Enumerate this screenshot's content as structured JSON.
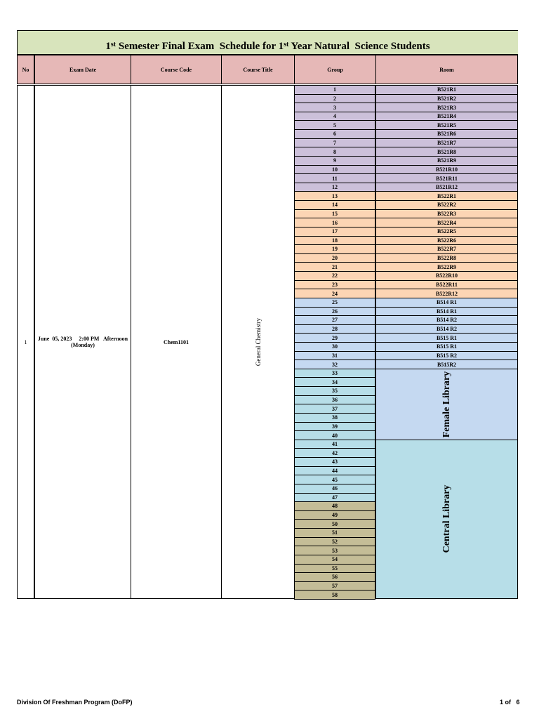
{
  "title": {
    "pre": "1",
    "sup1": "st",
    "mid": " Semester Final Exam  Schedule for 1",
    "sup2": "st",
    "post": " Year Natural  Science Students"
  },
  "headers": {
    "no": "No",
    "exam_date": "Exam Date",
    "course_code": "Course Code",
    "course_title": "Course Title",
    "group": "Group",
    "room": "Room"
  },
  "entry": {
    "no": "1",
    "date_line1": "June  05, 2023     2:00 PM   Afternoon",
    "date_line2": "(Monday)",
    "course_code": "Chem1101",
    "course_title": "General Chemistry"
  },
  "colors": {
    "purple": "#ccc0da",
    "orange": "#fcd5b4",
    "blue": "#c5d9f1",
    "teal": "#b7dee8",
    "olive": "#c4bd97"
  },
  "groups": [
    "1",
    "2",
    "3",
    "4",
    "5",
    "6",
    "7",
    "8",
    "9",
    "10",
    "11",
    "12",
    "13",
    "14",
    "15",
    "16",
    "17",
    "18",
    "19",
    "20",
    "21",
    "22",
    "23",
    "24",
    "25",
    "26",
    "27",
    "28",
    "29",
    "30",
    "31",
    "32",
    "33",
    "34",
    "35",
    "36",
    "37",
    "38",
    "39",
    "40",
    "41",
    "42",
    "43",
    "44",
    "45",
    "46",
    "47",
    "48",
    "49",
    "50",
    "51",
    "52",
    "53",
    "54",
    "55",
    "56",
    "57",
    "58"
  ],
  "rooms": [
    "B521R1",
    "B521R2",
    "B521R3",
    "B521R4",
    "B521R5",
    "B521R6",
    "B521R7",
    "B521R8",
    "B521R9",
    "B521R10",
    "B521R11",
    "B521R12",
    "B522R1",
    "B522R2",
    "B522R3",
    "B522R4",
    "B522R5",
    "B522R6",
    "B522R7",
    "B522R8",
    "B522R9",
    "B522R10",
    "B522R11",
    "B522R12",
    "B514 R1",
    "B514 R1",
    "B514 R2",
    "B514 R2",
    "B515 R1",
    "B515 R1",
    "B515 R2",
    "B515R2"
  ],
  "merged_rooms": {
    "female": "Female Library",
    "central": "Central Library"
  },
  "footer": {
    "left": "Division Of Freshman Program (DoFP)",
    "page": "1 of   6"
  }
}
